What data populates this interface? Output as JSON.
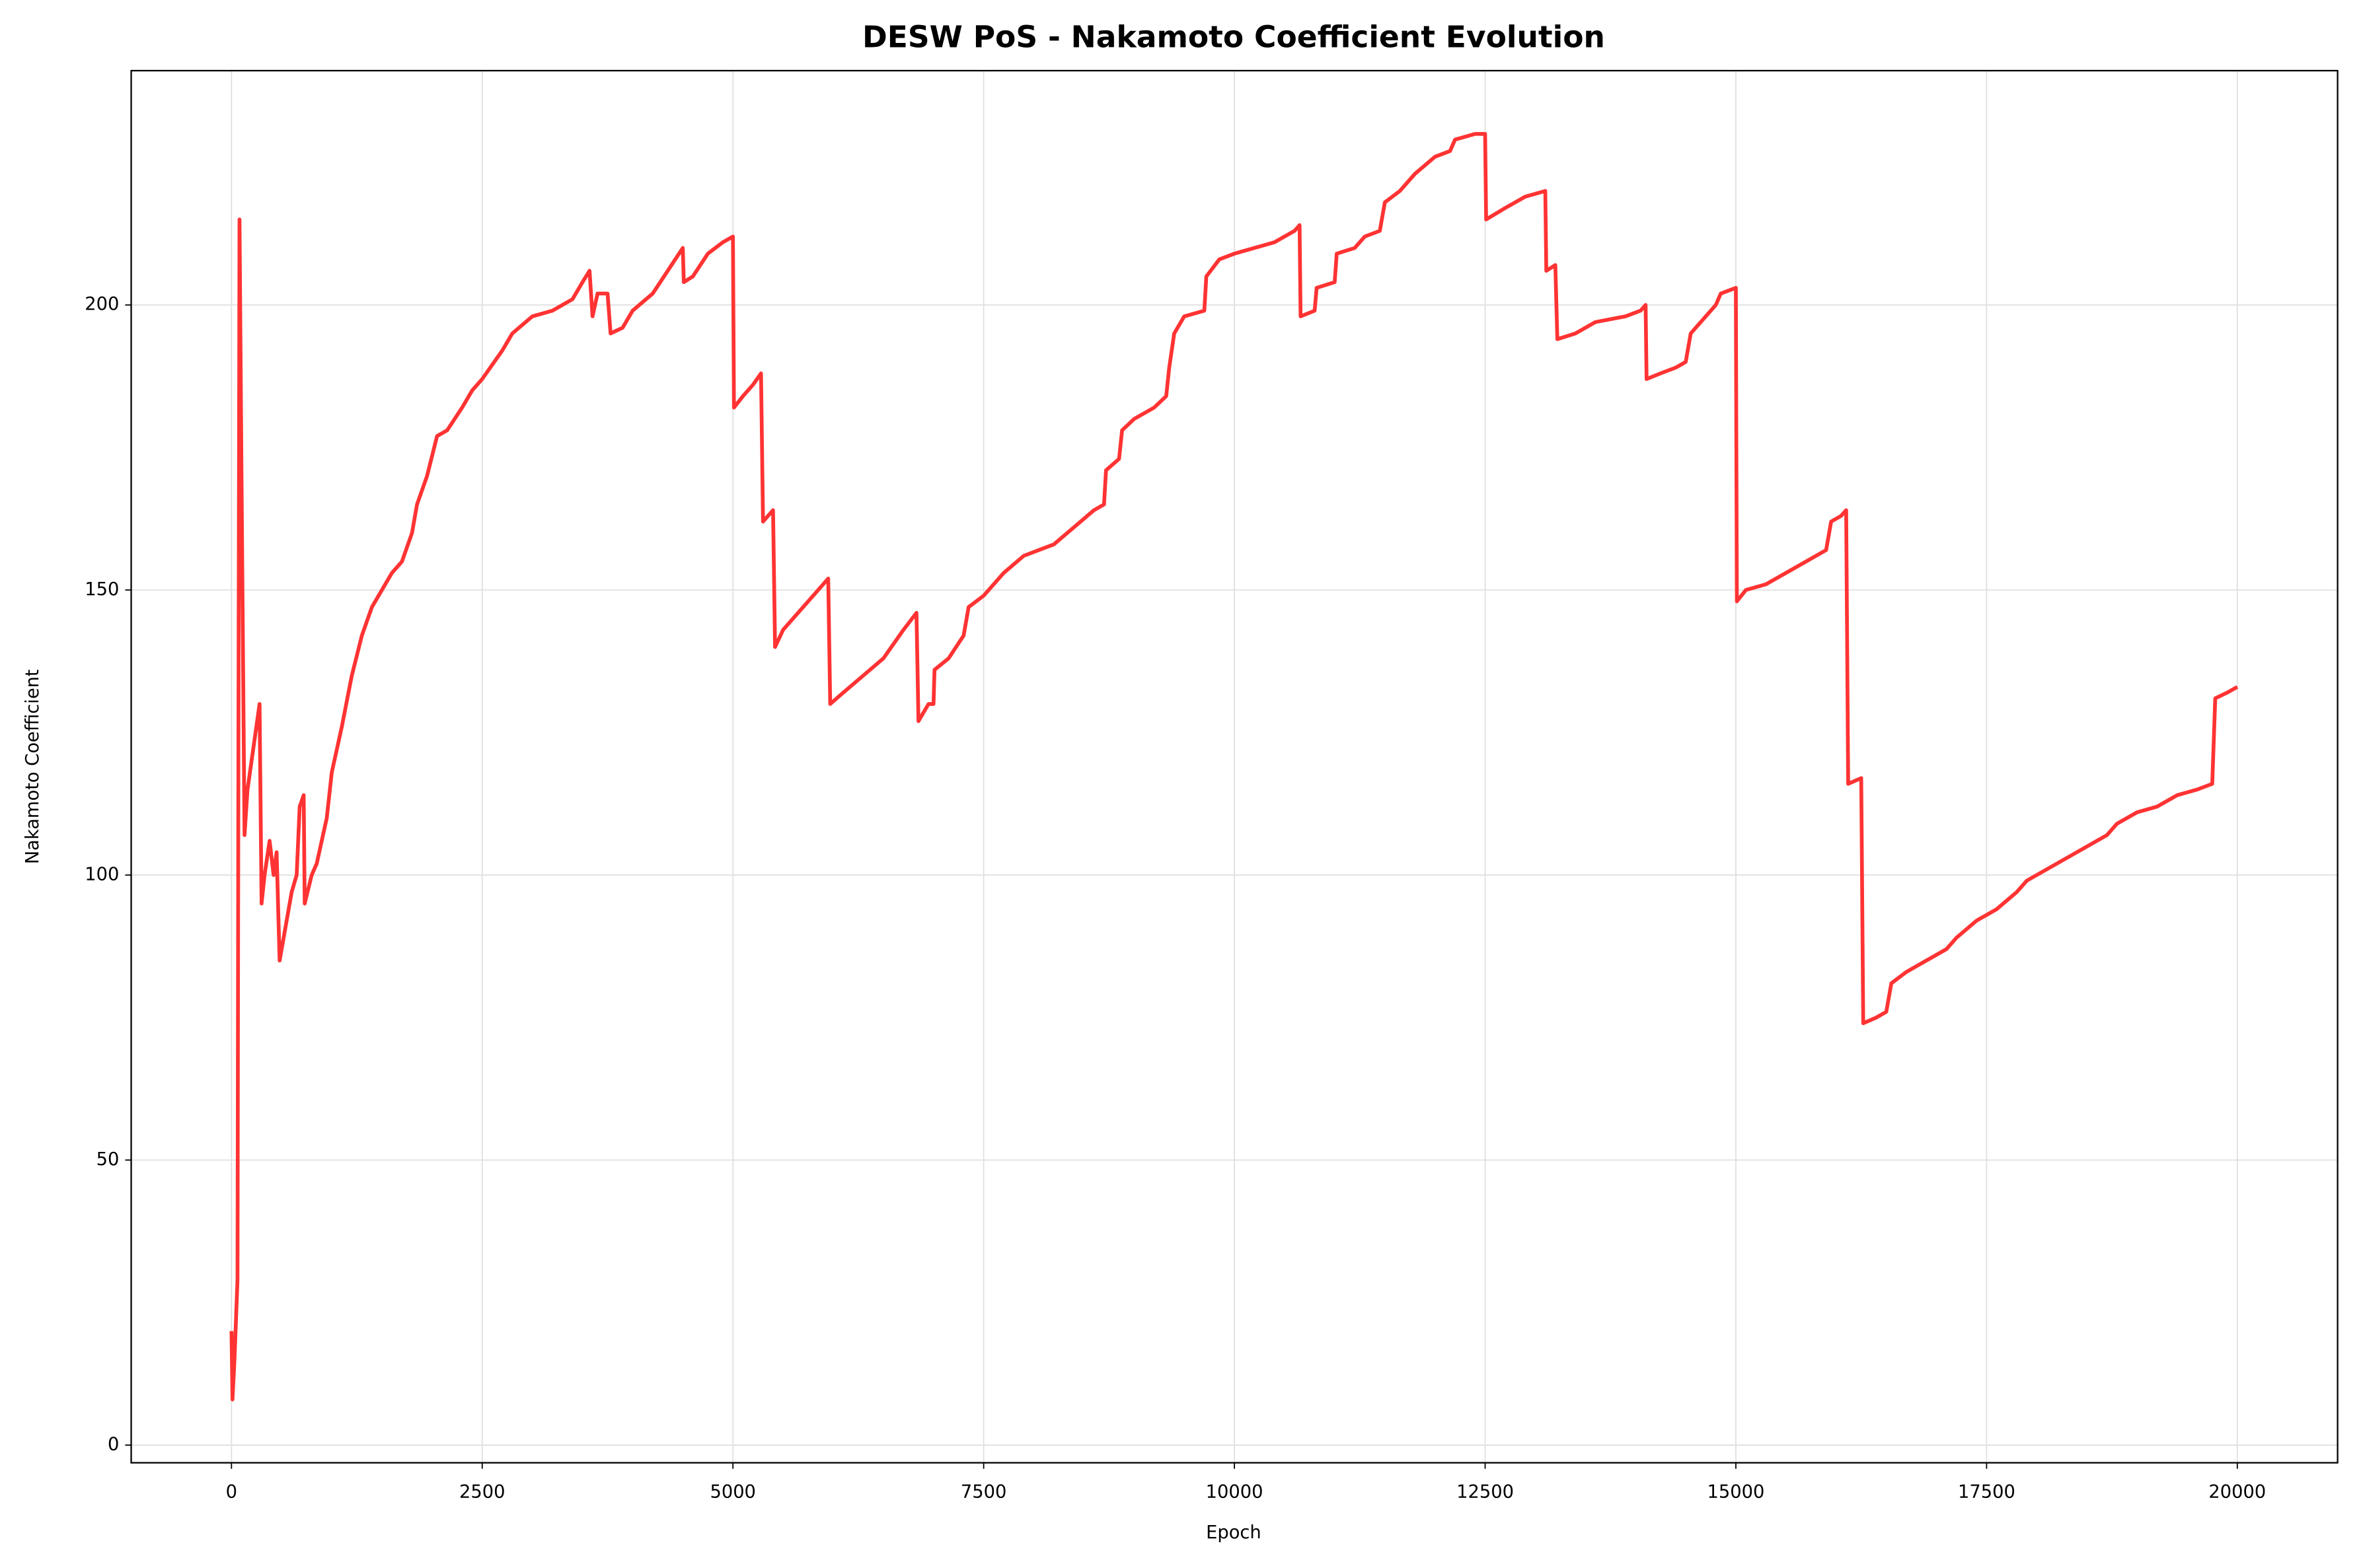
{
  "chart_data": {
    "type": "line",
    "title": "DESW PoS - Nakamoto Coefficient Evolution",
    "x_label": "Epoch",
    "y_label": "Nakamoto Coefficient",
    "xlim": [
      -1000,
      21000
    ],
    "xticks": [
      0,
      2500,
      5000,
      7500,
      10000,
      12500,
      15000,
      17500,
      20000
    ],
    "ylim": [
      -3.1,
      241.1
    ],
    "yticks": [
      0,
      50,
      100,
      150,
      200
    ],
    "grid": true,
    "series": [
      {
        "color": "#ff3333",
        "x": [
          0,
          10,
          30,
          60,
          70,
          80,
          100,
          130,
          160,
          200,
          280,
          300,
          330,
          380,
          420,
          450,
          480,
          550,
          600,
          650,
          680,
          720,
          730,
          800,
          850,
          950,
          1000,
          1100,
          1200,
          1300,
          1400,
          1500,
          1600,
          1700,
          1800,
          1850,
          1950,
          2050,
          2150,
          2300,
          2400,
          2500,
          2700,
          2800,
          3000,
          3200,
          3400,
          3500,
          3570,
          3600,
          3650,
          3750,
          3780,
          3900,
          4000,
          4200,
          4350,
          4500,
          4510,
          4600,
          4750,
          4900,
          5000,
          5010,
          5100,
          5200,
          5280,
          5300,
          5400,
          5420,
          5500,
          5700,
          5850,
          5950,
          5970,
          6100,
          6300,
          6500,
          6700,
          6830,
          6850,
          6950,
          7000,
          7010,
          7150,
          7300,
          7350,
          7500,
          7700,
          7900,
          8200,
          8400,
          8600,
          8700,
          8720,
          8850,
          8880,
          9000,
          9200,
          9320,
          9350,
          9400,
          9500,
          9700,
          9720,
          9850,
          10000,
          10200,
          10400,
          10600,
          10650,
          10660,
          10800,
          10820,
          11000,
          11020,
          11200,
          11300,
          11450,
          11500,
          11650,
          11800,
          12000,
          12150,
          12200,
          12400,
          12500,
          12510,
          12700,
          12900,
          13100,
          13110,
          13200,
          13220,
          13400,
          13600,
          13900,
          14050,
          14100,
          14110,
          14250,
          14400,
          14500,
          14550,
          14700,
          14800,
          14850,
          15000,
          15010,
          15100,
          15300,
          15500,
          15700,
          15900,
          15950,
          16050,
          16100,
          16120,
          16250,
          16270,
          16400,
          16500,
          16550,
          16700,
          16900,
          17100,
          17200,
          17400,
          17600,
          17800,
          17900,
          18100,
          18300,
          18500,
          18700,
          18800,
          19000,
          19200,
          19400,
          19600,
          19750,
          19780,
          19900,
          20000
        ],
        "values": [
          20,
          8,
          15,
          29,
          130,
          215,
          170,
          107,
          115,
          120,
          130,
          95,
          100,
          106,
          100,
          104,
          85,
          92,
          97,
          100,
          112,
          114,
          95,
          100,
          102,
          110,
          118,
          126,
          135,
          142,
          147,
          150,
          153,
          155,
          160,
          165,
          170,
          177,
          178,
          182,
          185,
          187,
          192,
          195,
          198,
          199,
          201,
          204,
          206,
          198,
          202,
          202,
          195,
          196,
          199,
          202,
          206,
          210,
          204,
          205,
          209,
          211,
          212,
          182,
          184,
          186,
          188,
          162,
          164,
          140,
          143,
          147,
          150,
          152,
          130,
          132,
          135,
          138,
          143,
          146,
          127,
          130,
          130,
          136,
          138,
          142,
          147,
          149,
          153,
          156,
          158,
          161,
          164,
          165,
          171,
          173,
          178,
          180,
          182,
          184,
          189,
          195,
          198,
          199,
          205,
          208,
          209,
          210,
          211,
          213,
          214,
          198,
          199,
          203,
          204,
          209,
          210,
          212,
          213,
          218,
          220,
          223,
          226,
          227,
          229,
          230,
          230,
          215,
          217,
          219,
          220,
          206,
          207,
          194,
          195,
          197,
          198,
          199,
          200,
          187,
          188,
          189,
          190,
          195,
          198,
          200,
          202,
          203,
          148,
          150,
          151,
          153,
          155,
          157,
          162,
          163,
          164,
          116,
          117,
          74,
          75,
          76,
          81,
          83,
          85,
          87,
          89,
          92,
          94,
          97,
          99,
          101,
          103,
          105,
          107,
          109,
          111,
          112,
          114,
          115,
          116,
          131,
          132,
          133
        ]
      }
    ]
  }
}
